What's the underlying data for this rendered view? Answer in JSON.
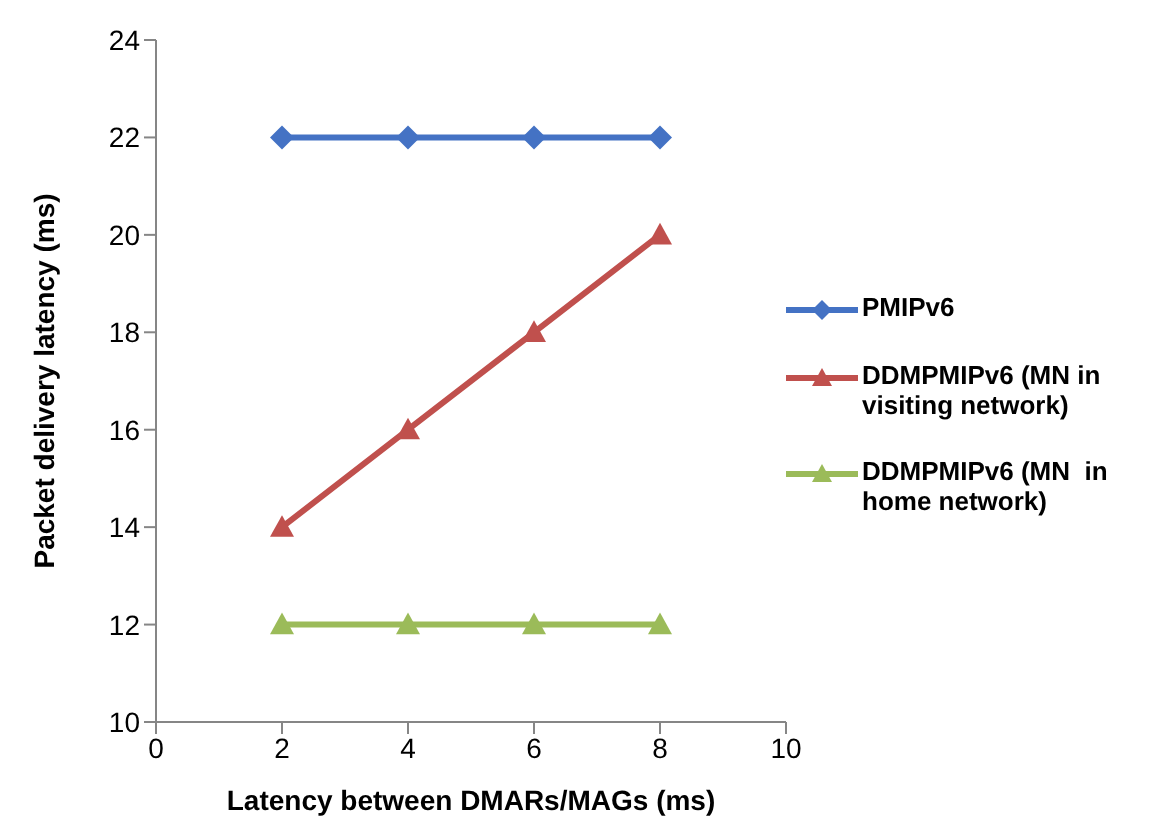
{
  "chart_data": {
    "type": "line",
    "xlabel": "Latency between DMARs/MAGs (ms)",
    "ylabel": "Packet delivery latency (ms)",
    "x": [
      2,
      4,
      6,
      8
    ],
    "series": [
      {
        "name": "PMIPv6",
        "color": "#4472c4",
        "marker": "diamond",
        "values": [
          22,
          22,
          22,
          22
        ]
      },
      {
        "name": "DDMPMIPv6 (MN in visiting network)",
        "color": "#c0504d",
        "marker": "triangle",
        "values": [
          14,
          16,
          18,
          20
        ]
      },
      {
        "name": "DDMPMIPv6 (MN  in home network)",
        "color": "#9bbb59",
        "marker": "triangle",
        "values": [
          12,
          12,
          12,
          12
        ]
      }
    ],
    "xlim": [
      0,
      10
    ],
    "xticks": [
      0,
      2,
      4,
      6,
      8,
      10
    ],
    "ylim": [
      10,
      24
    ],
    "yticks": [
      10,
      12,
      14,
      16,
      18,
      20,
      22,
      24
    ],
    "grid": false,
    "legend": "right",
    "line_style": "solid"
  }
}
